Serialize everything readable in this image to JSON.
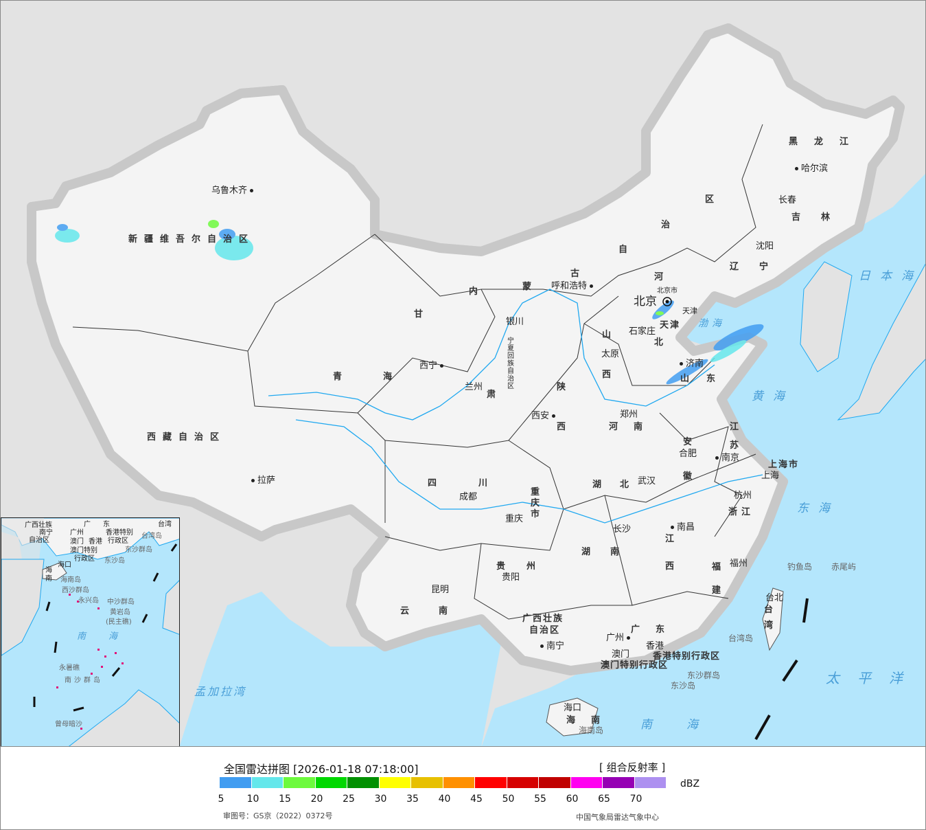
{
  "map": {
    "provinces": [
      "新疆维吾尔自治区",
      "西藏自治区",
      "青海",
      "甘",
      "肃",
      "内",
      "蒙",
      "古",
      "自",
      "治",
      "区",
      "黑龙江",
      "吉林",
      "辽宁",
      "河",
      "北",
      "山",
      "西",
      "陕",
      "西",
      "宁夏回族自治区",
      "四",
      "川",
      "重庆市",
      "云",
      "南",
      "贵",
      "州",
      "广西壮族",
      "自治区",
      "广",
      "东",
      "湖",
      "南",
      "湖",
      "北",
      "河",
      "南",
      "山",
      "东",
      "江",
      "苏",
      "安",
      "徽",
      "浙江",
      "江",
      "西",
      "福",
      "建",
      "台",
      "湾",
      "海",
      "南",
      "上海市",
      "香港特别行政区",
      "澳门特别行政区",
      "天津",
      "北京市"
    ],
    "cities": [
      "乌鲁木齐",
      "拉萨",
      "西宁",
      "兰州",
      "银川",
      "呼和浩特",
      "北京",
      "天津",
      "石家庄",
      "太原",
      "济南",
      "郑州",
      "西安",
      "成都",
      "重庆",
      "贵阳",
      "昆明",
      "南宁",
      "广州",
      "澳门",
      "香港",
      "海口",
      "长沙",
      "武汉",
      "南昌",
      "福州",
      "台北",
      "杭州",
      "上海",
      "南京",
      "合肥",
      "沈阳",
      "长春",
      "哈尔滨"
    ],
    "seas": [
      "日本海",
      "渤海",
      "黄海",
      "东海",
      "太平洋",
      "南海",
      "孟加拉湾"
    ],
    "islands": [
      "钓鱼岛",
      "赤尾屿",
      "台湾岛",
      "东沙群岛",
      "东沙岛",
      "海南岛"
    ],
    "inset": {
      "labels": [
        "广西壮族",
        "南宁",
        "自治区",
        "广",
        "东",
        "广州",
        "澳门",
        "香港",
        "香港特别",
        "行政区",
        "澳门特别",
        "行政区",
        "台湾",
        "台湾岛",
        "东沙群岛",
        "东沙岛",
        "海口",
        "海",
        "南",
        "海南岛",
        "西沙群岛",
        "永兴岛",
        "中沙群岛",
        "黄岩岛",
        "(民主礁)",
        "南",
        "海",
        "永暑礁",
        "南沙群岛",
        "曾母暗沙"
      ]
    },
    "colors": {
      "sea": "#b4e6fc",
      "land_china": "#f4f4f4",
      "land_other": "#e3e3e3",
      "river": "#1fa8f0",
      "nine_dash": "#222222"
    }
  },
  "legend": {
    "title": "全国雷达拼图 [2026-01-18 07:18:00]",
    "product": "[ 组合反射率 ]",
    "unit": "dBZ",
    "ticks": [
      "5",
      "10",
      "15",
      "20",
      "25",
      "30",
      "35",
      "40",
      "45",
      "50",
      "55",
      "60",
      "65",
      "70"
    ],
    "colors": [
      "#419df1",
      "#64e7eb",
      "#6dfa3d",
      "#00d800",
      "#019001",
      "#ffff00",
      "#e7c000",
      "#ff9000",
      "#ff0000",
      "#d60000",
      "#c00000",
      "#ff00f0",
      "#9600b4",
      "#ad90f0"
    ],
    "approval": "审图号：GS京（2022）0372号",
    "source": "中国气象局雷达气象中心"
  }
}
